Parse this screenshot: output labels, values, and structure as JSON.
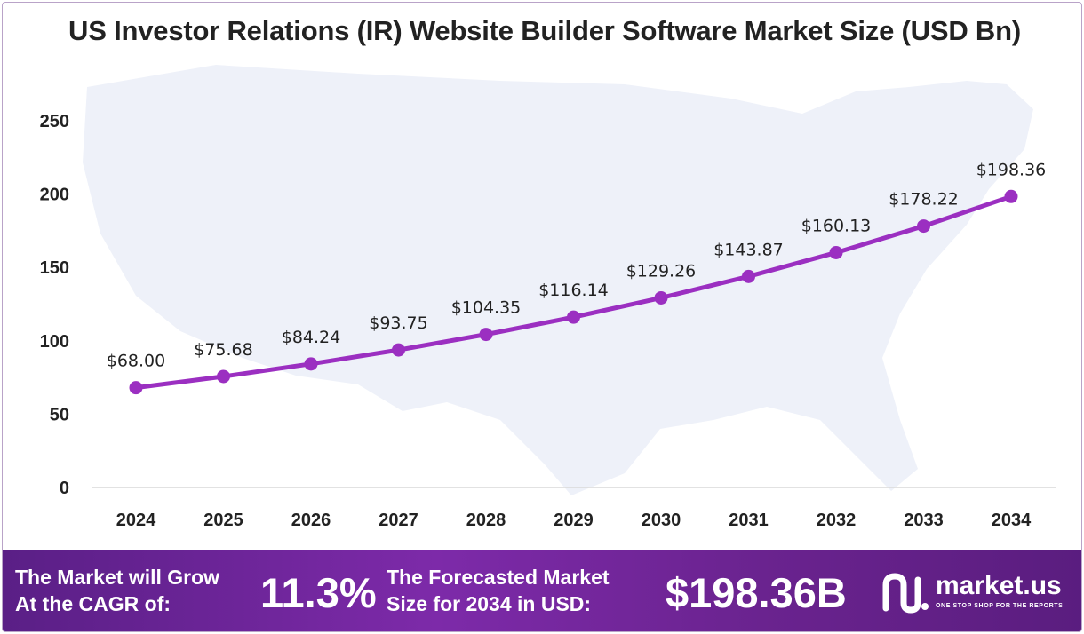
{
  "chart_data": {
    "type": "line",
    "title": "US Investor Relations (IR) Website Builder Software Market Size (USD Bn)",
    "categories": [
      "2024",
      "2025",
      "2026",
      "2027",
      "2028",
      "2029",
      "2030",
      "2031",
      "2032",
      "2033",
      "2034"
    ],
    "values": [
      68.0,
      75.68,
      84.24,
      93.75,
      104.35,
      116.14,
      129.26,
      143.87,
      160.13,
      178.22,
      198.36
    ],
    "data_labels": [
      "$68.00",
      "$75.68",
      "$84.24",
      "$93.75",
      "$104.35",
      "$116.14",
      "$129.26",
      "$143.87",
      "$160.13",
      "$178.22",
      "$198.36"
    ],
    "yticks": [
      "0",
      "50",
      "100",
      "150",
      "200",
      "250"
    ],
    "ylim": [
      0,
      250
    ],
    "grid": false,
    "line_color": "#9b2fc1",
    "marker_color": "#9b2fc1",
    "background_map_color": "#eef1f9"
  },
  "footer": {
    "cagr_line1": "The Market will Grow",
    "cagr_line2": "At the CAGR of:",
    "cagr_value": "11.3%",
    "forecast_line1": "The Forecasted Market",
    "forecast_line2": "Size for 2034 in USD:",
    "forecast_value": "$198.36B",
    "brand": "market.us",
    "tagline": "ONE STOP SHOP FOR THE REPORTS",
    "background_color": "#6f2499"
  }
}
